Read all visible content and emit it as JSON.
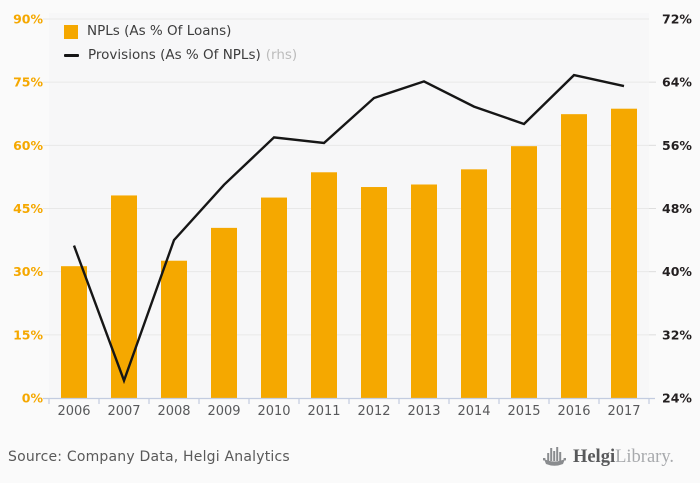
{
  "legend": {
    "items": [
      {
        "label": "NPLs (As % Of Loans)",
        "suffix": "",
        "swatch": "square",
        "color": "#f5a800"
      },
      {
        "label": "Provisions (As % Of NPLs)",
        "suffix": "(rhs)",
        "swatch": "line",
        "color": "#161616"
      }
    ]
  },
  "footer": {
    "source": "Source: Company Data, Helgi Analytics",
    "logo": {
      "icon": "helgi-ship-icon",
      "name_primary": "Helgi",
      "name_secondary": "Library."
    }
  },
  "chart_data": {
    "type": "bar",
    "subtype": "bar+line-dual-axis",
    "categories": [
      "2006",
      "2007",
      "2008",
      "2009",
      "2010",
      "2011",
      "2012",
      "2013",
      "2014",
      "2015",
      "2016",
      "2017"
    ],
    "series": [
      {
        "name": "NPLs (As % Of Loans)",
        "type": "bar",
        "axis": "left",
        "color": "#f5a800",
        "values": [
          31.3,
          48.1,
          32.6,
          40.4,
          47.6,
          53.6,
          50.1,
          50.7,
          54.3,
          59.8,
          67.4,
          68.7
        ]
      },
      {
        "name": "Provisions (As % Of NPLs)",
        "type": "line",
        "axis": "right",
        "color": "#161616",
        "values": [
          43.3,
          26.2,
          44.0,
          51.0,
          57.0,
          56.3,
          62.0,
          64.1,
          60.9,
          58.7,
          64.9,
          63.5
        ]
      }
    ],
    "left_axis": {
      "min": 0,
      "max": 90,
      "step": 15,
      "tick_values": [
        0,
        15,
        30,
        45,
        60,
        75,
        90
      ],
      "tick_labels": [
        "0%",
        "15%",
        "30%",
        "45%",
        "60%",
        "75%",
        "90%"
      ],
      "color": "#f5a800"
    },
    "right_axis": {
      "min": 24,
      "max": 72,
      "step": 8,
      "tick_values": [
        24,
        32,
        40,
        48,
        56,
        64,
        72
      ],
      "tick_labels": [
        "24%",
        "32%",
        "40%",
        "48%",
        "56%",
        "64%",
        "72%"
      ],
      "color": "#231f20"
    },
    "grid": true,
    "legend_position": "top-left",
    "title": "",
    "xlabel": "",
    "ylabel_left": "NPLs (As % Of Loans)",
    "ylabel_right": "Provisions (As % Of NPLs)",
    "colors": {
      "grid": "#e8e8e8",
      "axis_line": "#c3cce0",
      "plot_bg": "#f7f7f8",
      "page_bg": "#fafafa",
      "year_label": "#58595b"
    }
  }
}
